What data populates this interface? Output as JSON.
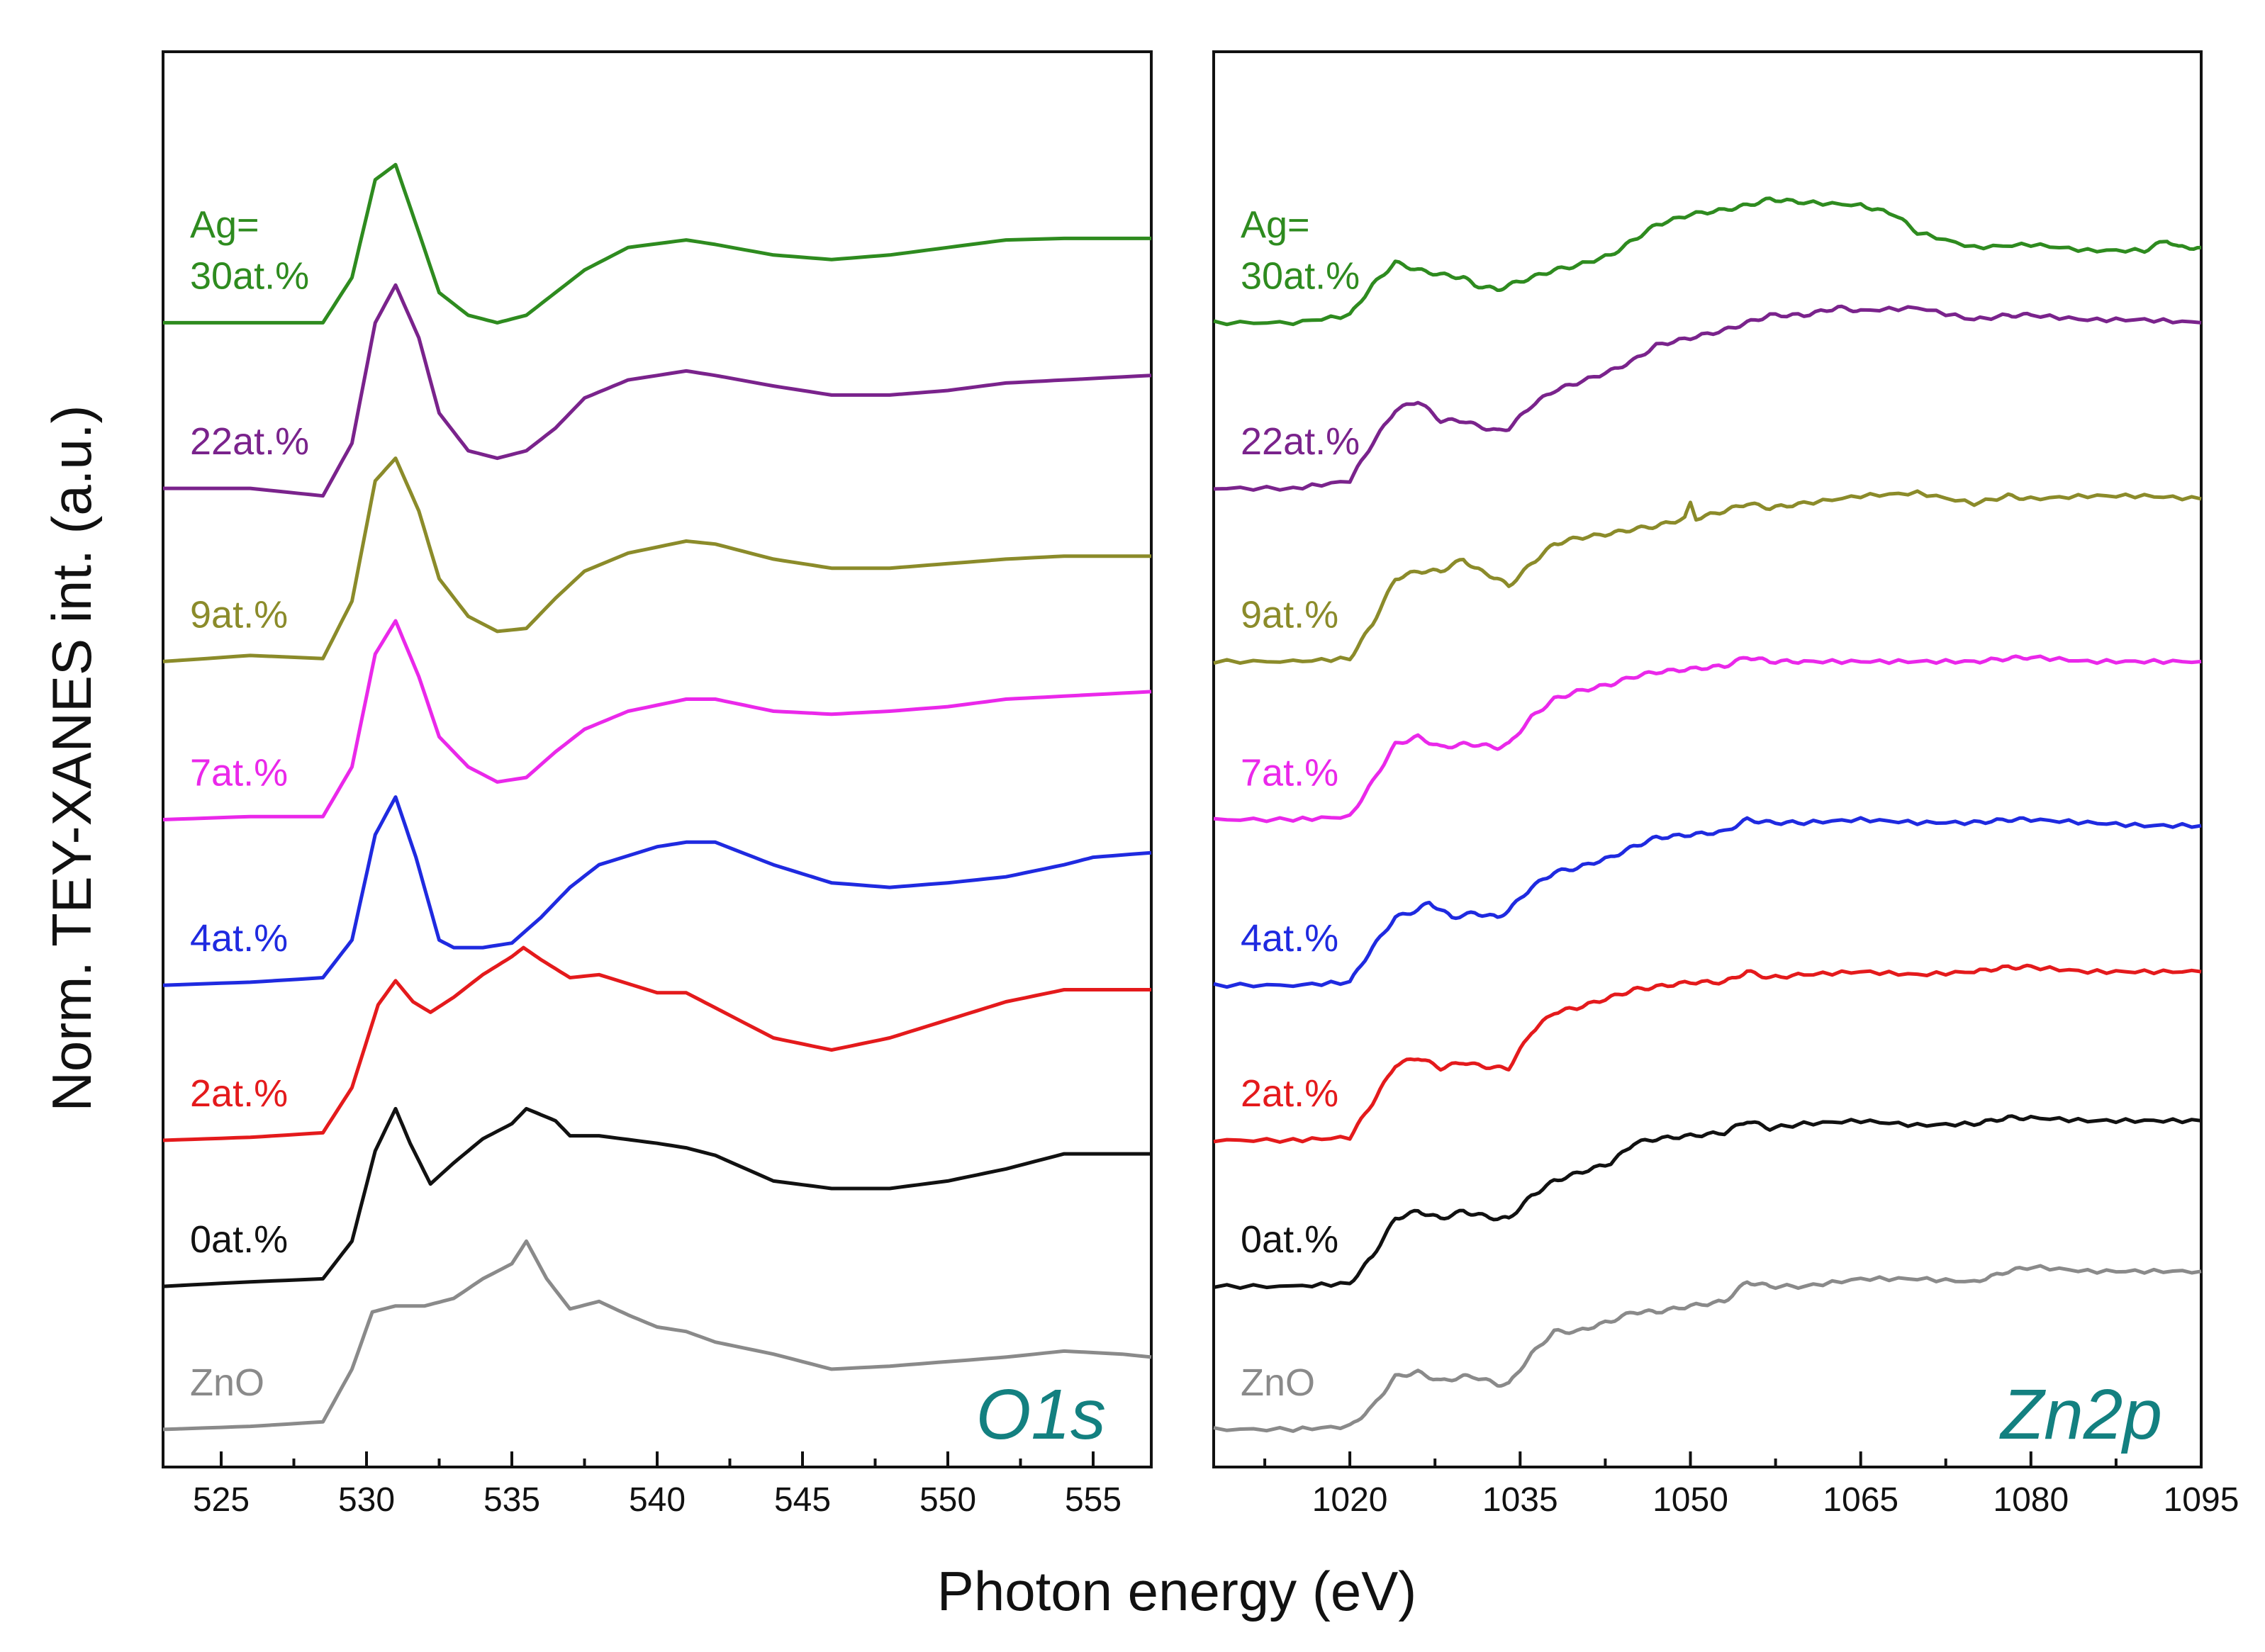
{
  "figure": {
    "ylabel": "Norm. TEY-XANES int. (a.u.)",
    "xlabel": "Photon energy (eV)",
    "label_prefix": "Ag="
  },
  "chart_data": [
    {
      "type": "line",
      "title": "O1s",
      "edge_label": "O1s",
      "xlabel": "Photon energy (eV)",
      "ylabel": "Norm. TEY-XANES int. (a.u.)",
      "xlim": [
        523,
        557
      ],
      "ylim": [
        0,
        9.4
      ],
      "xticks": [
        "525",
        "530",
        "535",
        "540",
        "545",
        "550",
        "555"
      ],
      "y_ticklabels": false,
      "series": [
        {
          "name": "ZnO",
          "label": "ZnO",
          "color": "#8a8a8a",
          "offset": 0.25,
          "x": [
            523,
            526,
            528.5,
            529.5,
            530.2,
            531,
            532,
            533,
            534,
            535,
            535.5,
            536.2,
            537,
            538,
            539,
            540,
            541,
            542,
            544,
            546,
            548,
            550,
            552,
            554,
            556,
            557
          ],
          "y": [
            0.0,
            0.02,
            0.05,
            0.4,
            0.78,
            0.82,
            0.82,
            0.87,
            1.0,
            1.1,
            1.25,
            1.0,
            0.8,
            0.85,
            0.76,
            0.68,
            0.65,
            0.58,
            0.5,
            0.4,
            0.42,
            0.45,
            0.48,
            0.52,
            0.5,
            0.48
          ]
        },
        {
          "name": "0at.%",
          "label": "0at.%",
          "color": "#111111",
          "offset": 1.2,
          "x": [
            523,
            526,
            528.5,
            529.5,
            530.3,
            531,
            531.5,
            532.2,
            533,
            534,
            535,
            535.5,
            536.5,
            537,
            538,
            540,
            541,
            542,
            544,
            546,
            548,
            550,
            552,
            554,
            557
          ],
          "y": [
            0.0,
            0.03,
            0.05,
            0.3,
            0.9,
            1.18,
            0.95,
            0.68,
            0.82,
            0.98,
            1.08,
            1.18,
            1.1,
            1.0,
            1.0,
            0.95,
            0.92,
            0.87,
            0.7,
            0.65,
            0.65,
            0.7,
            0.78,
            0.88,
            0.88
          ]
        },
        {
          "name": "2at.%",
          "label": "2at.%",
          "color": "#e41a1c",
          "offset": 2.17,
          "x": [
            523,
            526,
            528.5,
            529.5,
            530.4,
            531,
            531.6,
            532.2,
            533,
            534,
            535,
            535.4,
            536,
            537,
            538,
            540,
            541,
            542,
            544,
            546,
            548,
            550,
            552,
            554,
            557
          ],
          "y": [
            0.0,
            0.02,
            0.05,
            0.35,
            0.9,
            1.06,
            0.92,
            0.85,
            0.95,
            1.1,
            1.22,
            1.28,
            1.2,
            1.08,
            1.1,
            0.98,
            0.98,
            0.88,
            0.68,
            0.6,
            0.68,
            0.8,
            0.92,
            1.0,
            1.0
          ]
        },
        {
          "name": "4at.%",
          "label": "4at.%",
          "color": "#1f2ae0",
          "offset": 3.2,
          "x": [
            523,
            526,
            528.5,
            529.5,
            530.3,
            531,
            531.7,
            532.5,
            533,
            534,
            535,
            536,
            537,
            538,
            540,
            541,
            542,
            544,
            546,
            548,
            550,
            552,
            554,
            555,
            557
          ],
          "y": [
            0.0,
            0.02,
            0.05,
            0.3,
            1.0,
            1.25,
            0.85,
            0.3,
            0.25,
            0.25,
            0.28,
            0.45,
            0.65,
            0.8,
            0.92,
            0.95,
            0.95,
            0.8,
            0.68,
            0.65,
            0.68,
            0.72,
            0.8,
            0.85,
            0.88
          ]
        },
        {
          "name": "7at.%",
          "label": "7at.%",
          "color": "#ea28ea",
          "offset": 4.3,
          "x": [
            523,
            526,
            528.5,
            529.5,
            530.3,
            531,
            531.8,
            532.5,
            533.5,
            534.5,
            535.5,
            536.5,
            537.5,
            539,
            541,
            542,
            544,
            546,
            548,
            550,
            552,
            554,
            557
          ],
          "y": [
            0.0,
            0.02,
            0.02,
            0.35,
            1.1,
            1.32,
            0.95,
            0.55,
            0.35,
            0.25,
            0.28,
            0.45,
            0.6,
            0.72,
            0.8,
            0.8,
            0.72,
            0.7,
            0.72,
            0.75,
            0.8,
            0.82,
            0.85
          ]
        },
        {
          "name": "9at.%",
          "label": "9at.%",
          "color": "#8b8b2a",
          "offset": 5.35,
          "x": [
            523,
            526,
            528.5,
            529.5,
            530.3,
            531,
            531.8,
            532.5,
            533.5,
            534.5,
            535.5,
            536.5,
            537.5,
            539,
            541,
            542,
            544,
            546,
            548,
            550,
            552,
            554,
            557
          ],
          "y": [
            0.0,
            0.04,
            0.02,
            0.4,
            1.2,
            1.35,
            1.0,
            0.55,
            0.3,
            0.2,
            0.22,
            0.42,
            0.6,
            0.72,
            0.8,
            0.78,
            0.68,
            0.62,
            0.62,
            0.65,
            0.68,
            0.7,
            0.7
          ]
        },
        {
          "name": "22at.%",
          "label": "22at.%",
          "color": "#7a238c",
          "offset": 6.5,
          "x": [
            523,
            526,
            528.5,
            529.5,
            530.3,
            531,
            531.8,
            532.5,
            533.5,
            534.5,
            535.5,
            536.5,
            537.5,
            539,
            541,
            542,
            544,
            546,
            548,
            550,
            552,
            554,
            557
          ],
          "y": [
            0.0,
            0.0,
            -0.05,
            0.3,
            1.1,
            1.35,
            1.0,
            0.5,
            0.25,
            0.2,
            0.25,
            0.4,
            0.6,
            0.72,
            0.78,
            0.75,
            0.68,
            0.62,
            0.62,
            0.65,
            0.7,
            0.72,
            0.75
          ]
        },
        {
          "name": "30at.%",
          "label": "30at.%",
          "color": "#2e8b1f",
          "offset": 7.6,
          "x": [
            523,
            526,
            528.5,
            529.5,
            530.3,
            531,
            531.8,
            532.5,
            533.5,
            534.5,
            535.5,
            536.5,
            537.5,
            539,
            541,
            542,
            544,
            546,
            548,
            550,
            552,
            554,
            557
          ],
          "y": [
            0.0,
            0.0,
            0.0,
            0.3,
            0.95,
            1.05,
            0.6,
            0.2,
            0.05,
            0.0,
            0.05,
            0.2,
            0.35,
            0.5,
            0.55,
            0.52,
            0.45,
            0.42,
            0.45,
            0.5,
            0.55,
            0.56,
            0.56
          ]
        }
      ]
    },
    {
      "type": "line",
      "title": "Zn2p",
      "edge_label": "Zn2p",
      "xlabel": "Photon energy (eV)",
      "ylabel": "Norm. TEY-XANES int. (a.u.)",
      "xlim": [
        1008,
        1095
      ],
      "ylim": [
        0,
        9.4
      ],
      "xticks": [
        "1020",
        "1035",
        "1050",
        "1065",
        "1080",
        "1095"
      ],
      "y_ticklabels": false,
      "series": [
        {
          "name": "ZnO",
          "label": "ZnO",
          "color": "#8a8a8a",
          "offset": 0.25,
          "x": [
            1008,
            1015,
            1020,
            1022,
            1024,
            1026,
            1028,
            1030,
            1031,
            1033,
            1034,
            1036,
            1038,
            1040,
            1043,
            1045,
            1047,
            1050,
            1053,
            1055,
            1057,
            1060,
            1065,
            1070,
            1075,
            1078,
            1080,
            1085,
            1090,
            1095
          ],
          "y": [
            0.0,
            0.0,
            0.02,
            0.15,
            0.35,
            0.38,
            0.32,
            0.35,
            0.35,
            0.3,
            0.3,
            0.5,
            0.65,
            0.65,
            0.72,
            0.78,
            0.78,
            0.82,
            0.85,
            0.98,
            0.95,
            0.95,
            1.0,
            1.0,
            0.98,
            1.05,
            1.08,
            1.05,
            1.05,
            1.05
          ]
        },
        {
          "name": "0at.%",
          "label": "0at.%",
          "color": "#111111",
          "offset": 1.2,
          "x": [
            1008,
            1015,
            1020,
            1022,
            1024,
            1026,
            1028,
            1030,
            1031,
            1033,
            1034,
            1036,
            1038,
            1040,
            1043,
            1045,
            1047,
            1050,
            1053,
            1055,
            1057,
            1060,
            1065,
            1070,
            1075,
            1078,
            1080,
            1085,
            1090,
            1095
          ],
          "y": [
            0.0,
            0.0,
            0.02,
            0.2,
            0.45,
            0.5,
            0.45,
            0.5,
            0.48,
            0.45,
            0.45,
            0.6,
            0.7,
            0.75,
            0.82,
            0.95,
            0.98,
            1.0,
            1.02,
            1.1,
            1.05,
            1.08,
            1.1,
            1.07,
            1.08,
            1.12,
            1.12,
            1.1,
            1.1,
            1.1
          ]
        },
        {
          "name": "2at.%",
          "label": "2at.%",
          "color": "#e41a1c",
          "offset": 2.17,
          "x": [
            1008,
            1015,
            1020,
            1022,
            1024,
            1026,
            1028,
            1030,
            1031,
            1033,
            1034,
            1036,
            1038,
            1040,
            1043,
            1045,
            1047,
            1050,
            1053,
            1055,
            1057,
            1060,
            1065,
            1070,
            1075,
            1078,
            1080,
            1085,
            1090,
            1095
          ],
          "y": [
            0.0,
            0.0,
            0.02,
            0.25,
            0.5,
            0.55,
            0.48,
            0.52,
            0.5,
            0.48,
            0.48,
            0.72,
            0.85,
            0.88,
            0.95,
            1.0,
            1.02,
            1.05,
            1.05,
            1.12,
            1.08,
            1.1,
            1.12,
            1.1,
            1.12,
            1.15,
            1.15,
            1.12,
            1.12,
            1.12
          ]
        },
        {
          "name": "4at.%",
          "label": "4at.%",
          "color": "#1f2ae0",
          "offset": 3.2,
          "x": [
            1008,
            1015,
            1020,
            1022,
            1024,
            1026,
            1027,
            1029,
            1031,
            1033,
            1034,
            1036,
            1038,
            1040,
            1043,
            1045,
            1047,
            1050,
            1053,
            1055,
            1057,
            1060,
            1065,
            1070,
            1075,
            1078,
            1080,
            1085,
            1090,
            1095
          ],
          "y": [
            0.0,
            0.0,
            0.02,
            0.25,
            0.45,
            0.5,
            0.55,
            0.45,
            0.48,
            0.45,
            0.5,
            0.65,
            0.75,
            0.78,
            0.85,
            0.92,
            0.98,
            1.0,
            1.02,
            1.1,
            1.08,
            1.08,
            1.1,
            1.08,
            1.08,
            1.1,
            1.1,
            1.08,
            1.06,
            1.06
          ]
        },
        {
          "name": "7at.%",
          "label": "7at.%",
          "color": "#ea28ea",
          "offset": 4.3,
          "x": [
            1008,
            1015,
            1020,
            1022,
            1024,
            1026,
            1028,
            1030,
            1031,
            1033,
            1034,
            1036,
            1038,
            1040,
            1043,
            1045,
            1047,
            1050,
            1053,
            1055,
            1057,
            1060,
            1065,
            1070,
            1075,
            1078,
            1080,
            1085,
            1090,
            1095
          ],
          "y": [
            0.0,
            0.0,
            0.02,
            0.25,
            0.5,
            0.55,
            0.48,
            0.5,
            0.5,
            0.48,
            0.5,
            0.68,
            0.8,
            0.85,
            0.9,
            0.95,
            0.98,
            1.0,
            1.02,
            1.08,
            1.05,
            1.05,
            1.05,
            1.05,
            1.05,
            1.07,
            1.08,
            1.05,
            1.05,
            1.05
          ]
        },
        {
          "name": "9at.%",
          "label": "9at.%",
          "color": "#8b8b2a",
          "offset": 5.35,
          "x": [
            1008,
            1015,
            1020,
            1022,
            1024,
            1026,
            1028,
            1030,
            1031,
            1033,
            1034,
            1036,
            1038,
            1040,
            1043,
            1045,
            1047,
            1049.5,
            1050,
            1050.5,
            1053,
            1055,
            1057,
            1060,
            1065,
            1070,
            1075,
            1078,
            1080,
            1085,
            1090,
            1095
          ],
          "y": [
            0.0,
            0.0,
            0.02,
            0.25,
            0.55,
            0.6,
            0.6,
            0.68,
            0.62,
            0.55,
            0.5,
            0.65,
            0.78,
            0.82,
            0.85,
            0.88,
            0.9,
            0.95,
            1.05,
            0.95,
            1.0,
            1.05,
            1.02,
            1.05,
            1.1,
            1.12,
            1.05,
            1.1,
            1.08,
            1.1,
            1.1,
            1.08
          ]
        },
        {
          "name": "22at.%",
          "label": "22at.%",
          "color": "#7a238c",
          "offset": 6.5,
          "x": [
            1008,
            1015,
            1020,
            1022,
            1024,
            1026,
            1028,
            1030,
            1031,
            1033,
            1034,
            1036,
            1038,
            1040,
            1043,
            1045,
            1047,
            1050,
            1053,
            1055,
            1057,
            1060,
            1063,
            1065,
            1070,
            1075,
            1078,
            1080,
            1085,
            1090,
            1095
          ],
          "y": [
            0.0,
            0.0,
            0.05,
            0.3,
            0.52,
            0.58,
            0.45,
            0.45,
            0.42,
            0.38,
            0.4,
            0.55,
            0.65,
            0.7,
            0.78,
            0.85,
            0.95,
            1.0,
            1.05,
            1.1,
            1.15,
            1.15,
            1.2,
            1.18,
            1.2,
            1.12,
            1.15,
            1.15,
            1.12,
            1.12,
            1.1
          ]
        },
        {
          "name": "30at.%",
          "label": "30at.%",
          "color": "#2e8b1f",
          "offset": 7.6,
          "x": [
            1008,
            1015,
            1020,
            1022,
            1024,
            1026,
            1028,
            1030,
            1031,
            1033,
            1034,
            1036,
            1038,
            1040,
            1043,
            1045,
            1047,
            1050,
            1053,
            1055,
            1057,
            1060,
            1065,
            1068,
            1070,
            1075,
            1080,
            1085,
            1090,
            1092,
            1093,
            1095
          ],
          "y": [
            0.0,
            0.0,
            0.05,
            0.25,
            0.4,
            0.35,
            0.32,
            0.3,
            0.25,
            0.22,
            0.25,
            0.3,
            0.35,
            0.38,
            0.45,
            0.55,
            0.65,
            0.72,
            0.75,
            0.78,
            0.82,
            0.8,
            0.78,
            0.72,
            0.6,
            0.5,
            0.52,
            0.48,
            0.48,
            0.55,
            0.5,
            0.5
          ]
        }
      ]
    }
  ]
}
